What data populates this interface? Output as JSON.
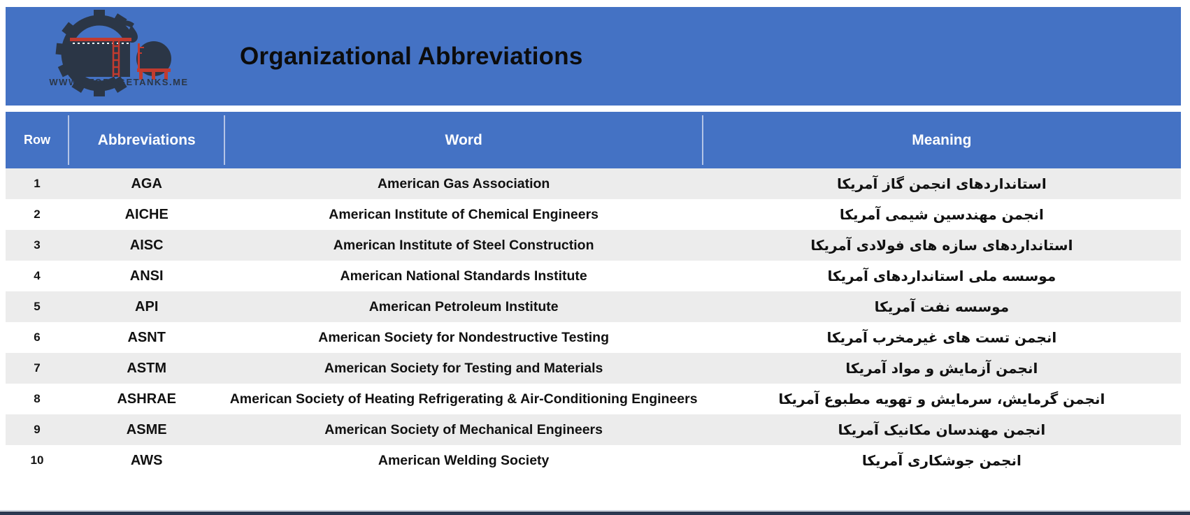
{
  "brand": {
    "logo_text": "WWW.STORAGETANKS.ME",
    "title": "Organizational Abbreviations"
  },
  "colors": {
    "header_blue": "#4472C4",
    "logo_navy": "#2b3646",
    "logo_red": "#c23b2f",
    "row_alt_gray": "#ECECEC",
    "text_dark": "#111111",
    "header_divider": "#b4c4e6",
    "bottom_bar_navy": "#2c3a52"
  },
  "table": {
    "columns": [
      "Row",
      "Abbreviations",
      "Word",
      "Meaning"
    ],
    "rows": [
      {
        "row": "1",
        "abbr": "AGA",
        "word": "American Gas Association",
        "meaning": "استانداردهای انجمن گاز آمریکا"
      },
      {
        "row": "2",
        "abbr": "AICHE",
        "word": "American Institute of Chemical Engineers",
        "meaning": "انجمن مهندسین شیمی آمریکا"
      },
      {
        "row": "3",
        "abbr": "AISC",
        "word": "American Institute of Steel Construction",
        "meaning": "استانداردهای سازه های فولادی آمریکا"
      },
      {
        "row": "4",
        "abbr": "ANSI",
        "word": "American National Standards Institute",
        "meaning": "موسسه ملی استانداردهای آمریکا"
      },
      {
        "row": "5",
        "abbr": "API",
        "word": "American Petroleum Institute",
        "meaning": "موسسه نفت آمریکا"
      },
      {
        "row": "6",
        "abbr": "ASNT",
        "word": "American Society for Nondestructive Testing",
        "meaning": "انجمن تست های غیرمخرب آمریکا"
      },
      {
        "row": "7",
        "abbr": "ASTM",
        "word": "American Society for Testing and Materials",
        "meaning": "انجمن آزمایش و مواد آمریکا"
      },
      {
        "row": "8",
        "abbr": "ASHRAE",
        "word": "American Society of Heating Refrigerating & Air-Conditioning Engineers",
        "meaning": "انجمن گرمایش، سرمایش و تهویه مطبوع آمریکا"
      },
      {
        "row": "9",
        "abbr": "ASME",
        "word": "American Society of Mechanical Engineers",
        "meaning": "انجمن مهندسان مکانیک آمریکا"
      },
      {
        "row": "10",
        "abbr": "AWS",
        "word": "American Welding Society",
        "meaning": "انجمن جوشکاری آمریکا"
      }
    ]
  }
}
